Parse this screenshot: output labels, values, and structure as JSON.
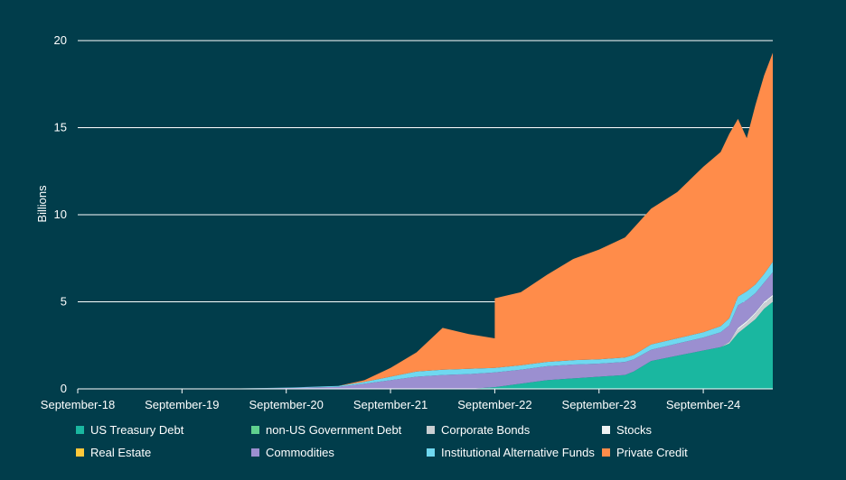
{
  "chart_data": {
    "type": "area",
    "stacked": true,
    "title": "",
    "xlabel": "",
    "ylabel": "Billions",
    "ylim": [
      0,
      20
    ],
    "yticks": [
      0,
      5,
      10,
      15,
      20
    ],
    "xlim": [
      "2018-09",
      "2025-05"
    ],
    "xticks": [
      "September-18",
      "September-19",
      "September-20",
      "September-21",
      "September-22",
      "September-23",
      "September-24"
    ],
    "xtick_dates": [
      "2018-09",
      "2019-09",
      "2020-09",
      "2021-09",
      "2022-09",
      "2023-09",
      "2024-09"
    ],
    "grid": "horizontal",
    "legend_position": "bottom",
    "x": [
      "2018-09",
      "2019-09",
      "2020-03",
      "2020-09",
      "2021-03",
      "2021-06",
      "2021-09",
      "2021-12",
      "2022-03",
      "2022-06",
      "2022-09",
      "2022-09",
      "2022-12",
      "2023-03",
      "2023-06",
      "2023-09",
      "2023-12",
      "2024-01",
      "2024-03",
      "2024-06",
      "2024-09",
      "2024-11",
      "2024-12",
      "2025-01",
      "2025-02",
      "2025-03",
      "2025-04",
      "2025-05"
    ],
    "series": [
      {
        "name": "US Treasury Debt",
        "color": "#1ab7a0",
        "values": [
          0,
          0,
          0,
          0,
          0,
          0,
          0,
          0,
          0,
          0,
          0.1,
          0.1,
          0.3,
          0.5,
          0.6,
          0.7,
          0.8,
          1.0,
          1.6,
          1.9,
          2.2,
          2.4,
          2.6,
          3.2,
          3.6,
          4.0,
          4.6,
          5.0
        ]
      },
      {
        "name": "non-US Government Debt",
        "color": "#5fd08e",
        "values": [
          0,
          0,
          0,
          0,
          0,
          0,
          0,
          0,
          0,
          0,
          0,
          0,
          0,
          0,
          0,
          0,
          0,
          0,
          0,
          0,
          0,
          0,
          0,
          0,
          0,
          0,
          0,
          0
        ]
      },
      {
        "name": "Corporate Bonds",
        "color": "#c9cfd2",
        "values": [
          0,
          0,
          0,
          0,
          0,
          0,
          0,
          0,
          0,
          0,
          0,
          0,
          0,
          0,
          0,
          0,
          0,
          0,
          0,
          0,
          0,
          0,
          0.1,
          0.2,
          0.2,
          0.3,
          0.3,
          0.3
        ]
      },
      {
        "name": "Stocks",
        "color": "#eef2f3",
        "values": [
          0,
          0,
          0,
          0,
          0,
          0,
          0,
          0,
          0,
          0,
          0,
          0,
          0,
          0,
          0,
          0,
          0,
          0,
          0,
          0,
          0,
          0,
          0,
          0.1,
          0.1,
          0.1,
          0.1,
          0.1
        ]
      },
      {
        "name": "Real Estate",
        "color": "#ffc83a",
        "values": [
          0,
          0,
          0,
          0,
          0,
          0,
          0,
          0,
          0,
          0,
          0,
          0,
          0,
          0,
          0,
          0,
          0,
          0,
          0,
          0,
          0,
          0,
          0,
          0,
          0,
          0,
          0,
          0
        ]
      },
      {
        "name": "Commodities",
        "color": "#9b8fd0",
        "values": [
          0,
          0,
          0.02,
          0.05,
          0.12,
          0.3,
          0.5,
          0.7,
          0.8,
          0.85,
          0.85,
          0.85,
          0.8,
          0.8,
          0.8,
          0.75,
          0.75,
          0.7,
          0.65,
          0.7,
          0.75,
          0.85,
          0.95,
          1.3,
          1.2,
          1.1,
          1.1,
          1.3
        ]
      },
      {
        "name": "Institutional Alternative Funds",
        "color": "#6fd8f0",
        "values": [
          0,
          0,
          0,
          0.02,
          0.05,
          0.1,
          0.2,
          0.3,
          0.3,
          0.3,
          0.25,
          0.25,
          0.25,
          0.25,
          0.25,
          0.25,
          0.25,
          0.25,
          0.3,
          0.3,
          0.3,
          0.35,
          0.4,
          0.5,
          0.5,
          0.5,
          0.5,
          0.6
        ]
      },
      {
        "name": "Private Credit",
        "color": "#ff8c4a",
        "values": [
          0,
          0,
          0,
          0,
          0,
          0.1,
          0.5,
          1.1,
          2.4,
          2.0,
          1.7,
          4.0,
          4.2,
          5.0,
          5.8,
          6.3,
          6.9,
          7.3,
          7.8,
          8.4,
          9.5,
          10.0,
          10.6,
          10.2,
          8.8,
          10.3,
          11.4,
          12.0
        ]
      }
    ]
  }
}
